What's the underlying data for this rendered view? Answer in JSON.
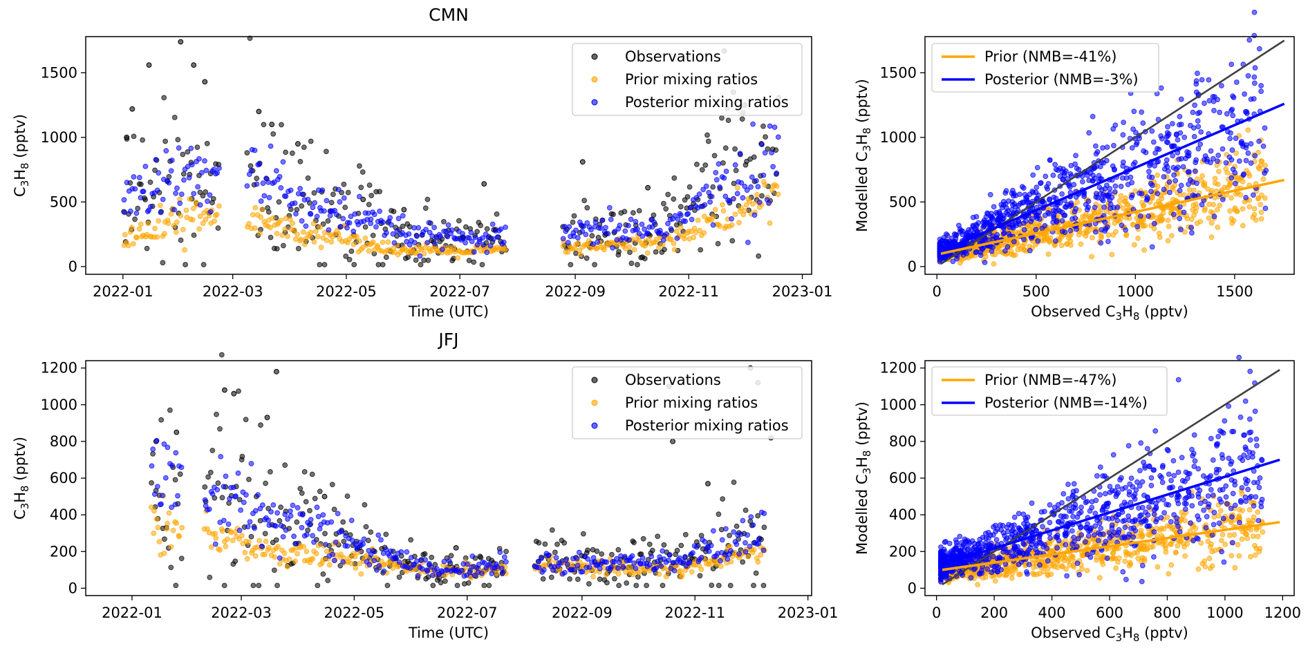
{
  "colors": {
    "observations": "#000000",
    "prior": "#FFA500",
    "posterior": "#0000FF",
    "one_to_one": "#404040"
  },
  "chart_data": [
    {
      "type": "scatter",
      "title": "CMN",
      "xlabel": "Time (UTC)",
      "ylabel_parts": [
        "C",
        "3",
        "H",
        "8",
        " (pptv)"
      ],
      "x_ticks": [
        "2022-01",
        "2022-03",
        "2022-05",
        "2022-07",
        "2022-09",
        "2022-11",
        "2023-01"
      ],
      "y_ticks": [
        "0",
        "500",
        "1000",
        "1500"
      ],
      "xlim": [
        "2021-12-12",
        "2023-01-06"
      ],
      "ylim": [
        -60,
        1780
      ],
      "legend": {
        "position": "top-right",
        "entries": [
          "Observations",
          "Prior mixing ratios",
          "Posterior mixing ratios"
        ]
      },
      "gaps": [
        [
          "2022-02-22",
          "2022-03-08"
        ],
        [
          "2022-07-26",
          "2022-08-24"
        ]
      ],
      "sample_series": {
        "observations": {
          "x": [
            "2022-01-03",
            "2022-01-06",
            "2022-01-15",
            "2022-02-01",
            "2022-02-08",
            "2022-02-14",
            "2022-03-15",
            "2022-03-22",
            "2022-04-05",
            "2022-05-10",
            "2022-06-01",
            "2022-07-14",
            "2022-09-05",
            "2022-10-10",
            "2022-11-20",
            "2022-11-25",
            "2022-12-01",
            "2022-12-10"
          ],
          "y": [
            1000,
            1220,
            1560,
            1740,
            1560,
            1430,
            1200,
            1100,
            950,
            520,
            440,
            640,
            810,
            610,
            1670,
            1350,
            1250,
            950
          ]
        },
        "prior": {
          "x": [
            "2022-01-05",
            "2022-02-10",
            "2022-03-15",
            "2022-04-20",
            "2022-06-01",
            "2022-07-10",
            "2022-09-10",
            "2022-10-20",
            "2022-11-20",
            "2022-12-15"
          ],
          "y": [
            220,
            420,
            330,
            250,
            120,
            120,
            150,
            200,
            380,
            540
          ]
        },
        "posterior": {
          "x": [
            "2022-01-05",
            "2022-02-10",
            "2022-03-15",
            "2022-04-20",
            "2022-06-01",
            "2022-07-10",
            "2022-09-10",
            "2022-10-20",
            "2022-11-20",
            "2022-12-15"
          ],
          "y": [
            550,
            700,
            680,
            430,
            250,
            200,
            260,
            300,
            600,
            780
          ]
        }
      }
    },
    {
      "type": "scatter",
      "xlabel_parts": [
        "Observed C",
        "3",
        "H",
        "8",
        " (pptv)"
      ],
      "ylabel_parts": [
        "Modelled C",
        "3",
        "H",
        "8",
        " (pptv)"
      ],
      "x_ticks": [
        "0",
        "500",
        "1000",
        "1500"
      ],
      "y_ticks": [
        "0",
        "500",
        "1000",
        "1500"
      ],
      "xlim": [
        -60,
        1800
      ],
      "ylim": [
        -60,
        1780
      ],
      "legend": {
        "position": "top-left",
        "entries": [
          "Prior (NMB=-41%)",
          "Posterior (NMB=-3%)"
        ]
      },
      "fit_lines": {
        "one_to_one": {
          "x": [
            20,
            1750
          ],
          "y": [
            20,
            1750
          ]
        },
        "prior": {
          "x": [
            20,
            1750
          ],
          "y": [
            100,
            670
          ]
        },
        "posterior": {
          "x": [
            20,
            1750
          ],
          "y": [
            120,
            1260
          ]
        }
      }
    },
    {
      "type": "scatter",
      "title": "JFJ",
      "xlabel": "Time (UTC)",
      "ylabel_parts": [
        "C",
        "3",
        "H",
        "8",
        " (pptv)"
      ],
      "x_ticks": [
        "2022-01",
        "2022-03",
        "2022-05",
        "2022-07",
        "2022-09",
        "2022-11",
        "2023-01"
      ],
      "y_ticks": [
        "0",
        "200",
        "400",
        "600",
        "800",
        "1000",
        "1200"
      ],
      "xlim": [
        "2021-12-07",
        "2023-01-03"
      ],
      "ylim": [
        -40,
        1240
      ],
      "legend": {
        "position": "top-right",
        "entries": [
          "Observations",
          "Prior mixing ratios",
          "Posterior mixing ratios"
        ]
      },
      "gaps": [
        [
          "2022-01-28",
          "2022-02-08"
        ],
        [
          "2022-07-22",
          "2022-08-06"
        ]
      ],
      "sample_series": {
        "observations": {
          "x": [
            "2022-01-14",
            "2022-01-25",
            "2022-02-20",
            "2022-02-25",
            "2022-03-15",
            "2022-03-20",
            "2022-04-15",
            "2022-06-25",
            "2022-10-18",
            "2022-10-20",
            "2022-11-08",
            "2022-12-01",
            "2022-12-05",
            "2022-12-12"
          ],
          "y": [
            800,
            850,
            1080,
            1060,
            930,
            1180,
            500,
            220,
            1100,
            800,
            570,
            1200,
            1120,
            820
          ]
        },
        "prior": {
          "x": [
            "2022-01-15",
            "2022-02-20",
            "2022-03-20",
            "2022-04-20",
            "2022-06-10",
            "2022-08-20",
            "2022-09-25",
            "2022-10-25",
            "2022-12-05"
          ],
          "y": [
            360,
            260,
            200,
            180,
            90,
            120,
            110,
            100,
            210
          ]
        },
        "posterior": {
          "x": [
            "2022-01-15",
            "2022-02-20",
            "2022-03-20",
            "2022-04-20",
            "2022-06-10",
            "2022-08-20",
            "2022-09-25",
            "2022-10-25",
            "2022-12-05"
          ],
          "y": [
            620,
            500,
            380,
            280,
            100,
            140,
            130,
            150,
            300
          ]
        }
      }
    },
    {
      "type": "scatter",
      "xlabel_parts": [
        "Observed C",
        "3",
        "H",
        "8",
        " (pptv)"
      ],
      "ylabel_parts": [
        "Modelled C",
        "3",
        "H",
        "8",
        " (pptv)"
      ],
      "x_ticks": [
        "0",
        "200",
        "400",
        "600",
        "800",
        "1000",
        "1200"
      ],
      "y_ticks": [
        "0",
        "200",
        "400",
        "600",
        "800",
        "1000",
        "1200"
      ],
      "xlim": [
        -40,
        1240
      ],
      "ylim": [
        -40,
        1240
      ],
      "legend": {
        "position": "top-left",
        "entries": [
          "Prior (NMB=-47%)",
          "Posterior (NMB=-14%)"
        ]
      },
      "fit_lines": {
        "one_to_one": {
          "x": [
            20,
            1190
          ],
          "y": [
            20,
            1190
          ]
        },
        "prior": {
          "x": [
            20,
            1190
          ],
          "y": [
            100,
            360
          ]
        },
        "posterior": {
          "x": [
            20,
            1190
          ],
          "y": [
            130,
            700
          ]
        }
      }
    }
  ]
}
